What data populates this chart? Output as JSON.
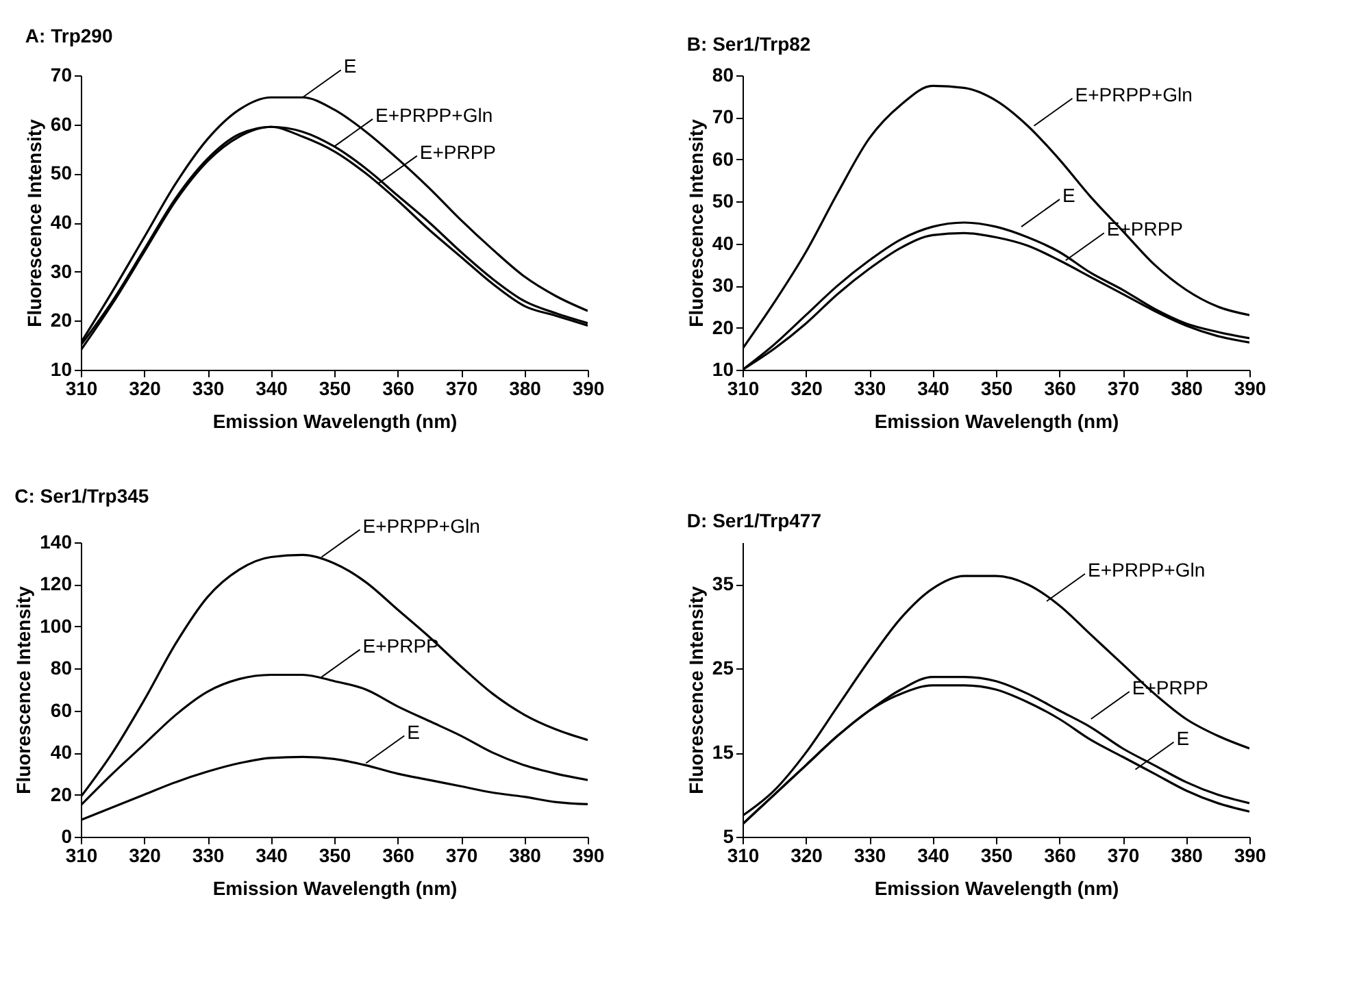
{
  "chart_data": [
    {
      "type": "line",
      "title": "A: Trp290",
      "xlabel": "Emission Wavelength (nm)",
      "ylabel": "Fluorescence Intensity",
      "x": [
        310,
        315,
        320,
        325,
        330,
        335,
        340,
        345,
        350,
        355,
        360,
        365,
        370,
        375,
        380,
        385,
        390
      ],
      "xlim": [
        310,
        390
      ],
      "xticks": [
        310,
        320,
        330,
        340,
        350,
        360,
        370,
        380,
        390
      ],
      "ylim": [
        10,
        70
      ],
      "yticks": [
        10,
        20,
        30,
        40,
        50,
        60,
        70
      ],
      "series": [
        {
          "color": "#000000",
          "values": [
            15.5,
            26,
            37,
            48,
            57,
            63,
            65.5,
            65.5,
            63,
            58.5,
            53,
            47,
            40.5,
            34.5,
            29,
            25,
            22
          ]
        },
        {
          "color": "#000000",
          "values": [
            15,
            24,
            34.5,
            45,
            53,
            58,
            59.5,
            58.5,
            55.5,
            51,
            45.5,
            40,
            34,
            28.5,
            24,
            21.5,
            19.5
          ]
        },
        {
          "color": "#000000",
          "values": [
            14,
            23.5,
            34,
            44.5,
            52.5,
            57.5,
            59.5,
            57.5,
            54.5,
            50,
            44.5,
            38.5,
            33,
            27.5,
            23,
            21,
            19
          ]
        }
      ],
      "annotations": [
        {
          "text": "E",
          "x": 345,
          "y": 65.5
        },
        {
          "text": "E+PRPP+Gln",
          "x": 350,
          "y": 55.5
        },
        {
          "text": "E+PRPP",
          "x": 357,
          "y": 48
        }
      ]
    },
    {
      "type": "line",
      "title": "B: Ser1/Trp82",
      "xlabel": "Emission Wavelength (nm)",
      "ylabel": "Fluorescence Intensity",
      "x": [
        310,
        315,
        320,
        325,
        330,
        335,
        340,
        345,
        350,
        355,
        360,
        365,
        370,
        375,
        380,
        385,
        390
      ],
      "xlim": [
        310,
        390
      ],
      "xticks": [
        310,
        320,
        330,
        340,
        350,
        360,
        370,
        380,
        390
      ],
      "ylim": [
        10,
        80
      ],
      "yticks": [
        10,
        20,
        30,
        40,
        50,
        60,
        70,
        80
      ],
      "series": [
        {
          "color": "#000000",
          "values": [
            15,
            26,
            38,
            52,
            65,
            73,
            77.5,
            77,
            74,
            68,
            60,
            51,
            43,
            35,
            29,
            25,
            23
          ]
        },
        {
          "color": "#000000",
          "values": [
            10,
            16,
            23,
            30,
            36,
            41,
            44,
            45,
            44,
            41.5,
            38,
            33,
            29,
            24.5,
            21,
            19,
            17.5
          ]
        },
        {
          "color": "#000000",
          "values": [
            10,
            15,
            21,
            28,
            34,
            39,
            42,
            42.5,
            41.5,
            39.5,
            36,
            32,
            28,
            24,
            20.5,
            18,
            16.5
          ]
        }
      ],
      "annotations": [
        {
          "text": "E+PRPP+Gln",
          "x": 356,
          "y": 68
        },
        {
          "text": "E",
          "x": 354,
          "y": 44
        },
        {
          "text": "E+PRPP",
          "x": 361,
          "y": 36
        }
      ]
    },
    {
      "type": "line",
      "title": "C: Ser1/Trp345",
      "xlabel": "Emission Wavelength (nm)",
      "ylabel": "Fluorescence Intensity",
      "x": [
        310,
        315,
        320,
        325,
        330,
        335,
        340,
        345,
        350,
        355,
        360,
        365,
        370,
        375,
        380,
        385,
        390
      ],
      "xlim": [
        310,
        390
      ],
      "xticks": [
        310,
        320,
        330,
        340,
        350,
        360,
        370,
        380,
        390
      ],
      "ylim": [
        0,
        140
      ],
      "yticks": [
        0,
        20,
        40,
        60,
        80,
        100,
        120,
        140
      ],
      "series": [
        {
          "color": "#000000",
          "values": [
            19,
            40,
            65,
            92,
            114,
            127,
            133,
            134,
            130,
            121,
            108,
            95,
            81,
            68,
            58,
            51,
            46
          ]
        },
        {
          "color": "#000000",
          "values": [
            15,
            30,
            44,
            58,
            69,
            75,
            77,
            77,
            74,
            70,
            62,
            55,
            48,
            40,
            34,
            30,
            27
          ]
        },
        {
          "color": "#000000",
          "values": [
            8,
            14,
            20,
            26,
            31,
            35,
            37.5,
            38,
            37,
            34,
            30,
            27,
            24,
            21,
            19,
            16.5,
            15.5
          ]
        }
      ],
      "annotations": [
        {
          "text": "E+PRPP+Gln",
          "x": 348,
          "y": 133
        },
        {
          "text": "E+PRPP",
          "x": 348,
          "y": 76
        },
        {
          "text": "E",
          "x": 355,
          "y": 35
        }
      ]
    },
    {
      "type": "line",
      "title": "D: Ser1/Trp477",
      "xlabel": "Emission Wavelength (nm)",
      "ylabel": "Fluorescence Intensity",
      "x": [
        310,
        315,
        320,
        325,
        330,
        335,
        340,
        345,
        350,
        355,
        360,
        365,
        370,
        375,
        380,
        385,
        390
      ],
      "xlim": [
        310,
        390
      ],
      "xticks": [
        310,
        320,
        330,
        340,
        350,
        360,
        370,
        380,
        390
      ],
      "ylim": [
        5,
        40
      ],
      "yticks": [
        5,
        15,
        25,
        35
      ],
      "series": [
        {
          "color": "#000000",
          "values": [
            7.5,
            10.5,
            15,
            20.5,
            26,
            31,
            34.5,
            36,
            36,
            35,
            32.5,
            29,
            25.5,
            22,
            19,
            17,
            15.5
          ]
        },
        {
          "color": "#000000",
          "values": [
            6.5,
            10,
            13.5,
            17,
            20,
            22.5,
            24,
            24,
            23.5,
            22,
            20,
            18,
            15.5,
            13.5,
            11.5,
            10,
            9
          ]
        },
        {
          "color": "#000000",
          "values": [
            6.5,
            10,
            13.5,
            17,
            20,
            22,
            23,
            23,
            22.5,
            21,
            19,
            16.5,
            14.5,
            12.5,
            10.5,
            9,
            8
          ]
        }
      ],
      "annotations": [
        {
          "text": "E+PRPP+Gln",
          "x": 358,
          "y": 33
        },
        {
          "text": "E+PRPP",
          "x": 365,
          "y": 19
        },
        {
          "text": "E",
          "x": 372,
          "y": 13
        }
      ]
    }
  ]
}
